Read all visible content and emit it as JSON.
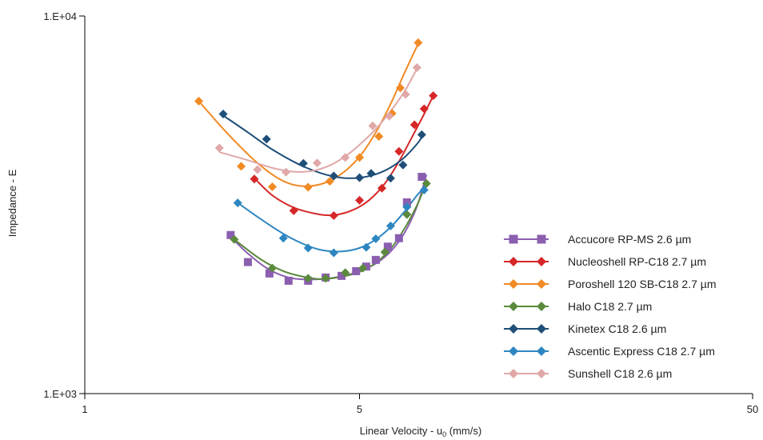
{
  "chart_data": {
    "type": "scatter",
    "xlabel_main": "Linear Velocity - u",
    "xlabel_sub": "0",
    "xlabel_unit": " (mm/s)",
    "ylabel": "Impedance - E",
    "x_scale": "log",
    "y_scale": "log",
    "xlim": [
      1,
      50
    ],
    "ylim": [
      1000,
      10000
    ],
    "x_ticks": [
      1,
      5,
      50
    ],
    "x_tick_labels": [
      "1",
      "5",
      "50"
    ],
    "y_ticks": [
      1000,
      10000
    ],
    "y_tick_labels": [
      "1.E+03",
      "1.E+04"
    ],
    "grid": false,
    "legend_position": "lower-right",
    "series": [
      {
        "name": "Accucore RP-MS 2.6 µm",
        "color": "#8b5fb0",
        "marker": "square",
        "points": [
          [
            2.35,
            2630
          ],
          [
            2.6,
            2230
          ],
          [
            2.95,
            2080
          ],
          [
            3.3,
            1990
          ],
          [
            3.7,
            1990
          ],
          [
            4.1,
            2030
          ],
          [
            4.5,
            2050
          ],
          [
            4.9,
            2110
          ],
          [
            5.2,
            2170
          ],
          [
            5.5,
            2260
          ],
          [
            5.9,
            2450
          ],
          [
            6.3,
            2580
          ],
          [
            6.6,
            3210
          ],
          [
            7.2,
            3750
          ]
        ],
        "fit": [
          [
            2.35,
            2600
          ],
          [
            2.6,
            2350
          ],
          [
            2.9,
            2150
          ],
          [
            3.2,
            2050
          ],
          [
            3.5,
            2010
          ],
          [
            4.0,
            2010
          ],
          [
            4.5,
            2045
          ],
          [
            5.0,
            2110
          ],
          [
            5.5,
            2210
          ],
          [
            6.0,
            2380
          ],
          [
            6.5,
            2660
          ],
          [
            7.0,
            3130
          ],
          [
            7.4,
            3800
          ]
        ]
      },
      {
        "name": "Nucleoshell RP-C18 2.7 µm",
        "color": "#d62728",
        "marker": "diamond",
        "points": [
          [
            2.7,
            3700
          ],
          [
            3.4,
            3050
          ],
          [
            4.3,
            2960
          ],
          [
            5.0,
            3250
          ],
          [
            5.7,
            3500
          ],
          [
            6.3,
            4380
          ],
          [
            6.9,
            5150
          ],
          [
            7.3,
            5680
          ],
          [
            7.7,
            6150
          ]
        ],
        "fit": [
          [
            2.7,
            3720
          ],
          [
            3.0,
            3350
          ],
          [
            3.4,
            3110
          ],
          [
            3.9,
            2990
          ],
          [
            4.3,
            2970
          ],
          [
            4.8,
            3060
          ],
          [
            5.3,
            3260
          ],
          [
            5.8,
            3600
          ],
          [
            6.3,
            4120
          ],
          [
            6.8,
            4780
          ],
          [
            7.3,
            5500
          ],
          [
            7.7,
            6150
          ]
        ]
      },
      {
        "name": "Poroshell 120 SB-C18 2.7 µm",
        "color": "#f08a24",
        "marker": "diamond",
        "points": [
          [
            1.95,
            5950
          ],
          [
            2.5,
            4000
          ],
          [
            3.0,
            3530
          ],
          [
            3.7,
            3520
          ],
          [
            4.2,
            3650
          ],
          [
            5.0,
            4220
          ],
          [
            5.6,
            4800
          ],
          [
            6.05,
            5520
          ],
          [
            6.35,
            6450
          ],
          [
            7.05,
            8500
          ]
        ],
        "fit": [
          [
            1.95,
            5950
          ],
          [
            2.3,
            4900
          ],
          [
            2.7,
            4150
          ],
          [
            3.1,
            3720
          ],
          [
            3.5,
            3550
          ],
          [
            4.0,
            3590
          ],
          [
            4.5,
            3820
          ],
          [
            5.0,
            4240
          ],
          [
            5.5,
            4920
          ],
          [
            6.0,
            5850
          ],
          [
            6.5,
            7050
          ],
          [
            7.05,
            8450
          ]
        ]
      },
      {
        "name": "Halo C18 2.7 µm",
        "color": "#5a8a3c",
        "marker": "diamond",
        "points": [
          [
            2.4,
            2560
          ],
          [
            3.0,
            2150
          ],
          [
            3.7,
            2020
          ],
          [
            4.1,
            2020
          ],
          [
            4.6,
            2090
          ],
          [
            5.1,
            2150
          ],
          [
            5.8,
            2370
          ],
          [
            6.6,
            2980
          ],
          [
            7.4,
            3600
          ]
        ],
        "fit": [
          [
            2.4,
            2560
          ],
          [
            2.8,
            2270
          ],
          [
            3.2,
            2110
          ],
          [
            3.6,
            2040
          ],
          [
            4.0,
            2010
          ],
          [
            4.5,
            2040
          ],
          [
            5.0,
            2100
          ],
          [
            5.5,
            2220
          ],
          [
            6.0,
            2420
          ],
          [
            6.5,
            2730
          ],
          [
            7.0,
            3150
          ],
          [
            7.4,
            3620
          ]
        ]
      },
      {
        "name": "Kinetex C18 2.6 µm",
        "color": "#1f4e79",
        "marker": "diamond",
        "points": [
          [
            2.25,
            5500
          ],
          [
            2.9,
            4720
          ],
          [
            3.6,
            4070
          ],
          [
            4.3,
            3770
          ],
          [
            5.0,
            3730
          ],
          [
            5.35,
            3830
          ],
          [
            6.0,
            3720
          ],
          [
            6.45,
            4030
          ],
          [
            7.2,
            4850
          ]
        ],
        "fit": [
          [
            2.25,
            5450
          ],
          [
            2.6,
            4920
          ],
          [
            3.0,
            4430
          ],
          [
            3.5,
            4050
          ],
          [
            4.0,
            3830
          ],
          [
            4.5,
            3730
          ],
          [
            5.0,
            3730
          ],
          [
            5.5,
            3810
          ],
          [
            6.0,
            3970
          ],
          [
            6.5,
            4220
          ],
          [
            7.0,
            4580
          ],
          [
            7.2,
            4780
          ]
        ]
      },
      {
        "name": "Ascentic Express C18 2.7 µm",
        "color": "#2e86c1",
        "marker": "diamond",
        "points": [
          [
            2.45,
            3200
          ],
          [
            3.2,
            2580
          ],
          [
            3.7,
            2430
          ],
          [
            4.3,
            2360
          ],
          [
            5.2,
            2440
          ],
          [
            5.5,
            2570
          ],
          [
            6.0,
            2780
          ],
          [
            6.6,
            3120
          ],
          [
            7.3,
            3460
          ]
        ],
        "fit": [
          [
            2.45,
            3200
          ],
          [
            2.8,
            2900
          ],
          [
            3.2,
            2650
          ],
          [
            3.6,
            2490
          ],
          [
            4.0,
            2400
          ],
          [
            4.5,
            2380
          ],
          [
            5.0,
            2430
          ],
          [
            5.5,
            2560
          ],
          [
            6.0,
            2760
          ],
          [
            6.5,
            3030
          ],
          [
            7.0,
            3350
          ],
          [
            7.3,
            3510
          ]
        ]
      },
      {
        "name": "Sunshell C18 2.6 µm",
        "color": "#e0a8a8",
        "marker": "diamond",
        "points": [
          [
            2.2,
            4470
          ],
          [
            2.75,
            3920
          ],
          [
            3.25,
            3860
          ],
          [
            3.9,
            4080
          ],
          [
            4.6,
            4220
          ],
          [
            5.4,
            5120
          ],
          [
            5.95,
            5430
          ],
          [
            6.55,
            6200
          ],
          [
            7.0,
            7300
          ]
        ],
        "fit": [
          [
            2.2,
            4360
          ],
          [
            2.6,
            4150
          ],
          [
            3.0,
            3960
          ],
          [
            3.4,
            3870
          ],
          [
            3.8,
            3890
          ],
          [
            4.2,
            4020
          ],
          [
            4.6,
            4250
          ],
          [
            5.0,
            4560
          ],
          [
            5.5,
            5020
          ],
          [
            6.0,
            5600
          ],
          [
            6.5,
            6300
          ],
          [
            7.0,
            7250
          ]
        ]
      }
    ]
  }
}
